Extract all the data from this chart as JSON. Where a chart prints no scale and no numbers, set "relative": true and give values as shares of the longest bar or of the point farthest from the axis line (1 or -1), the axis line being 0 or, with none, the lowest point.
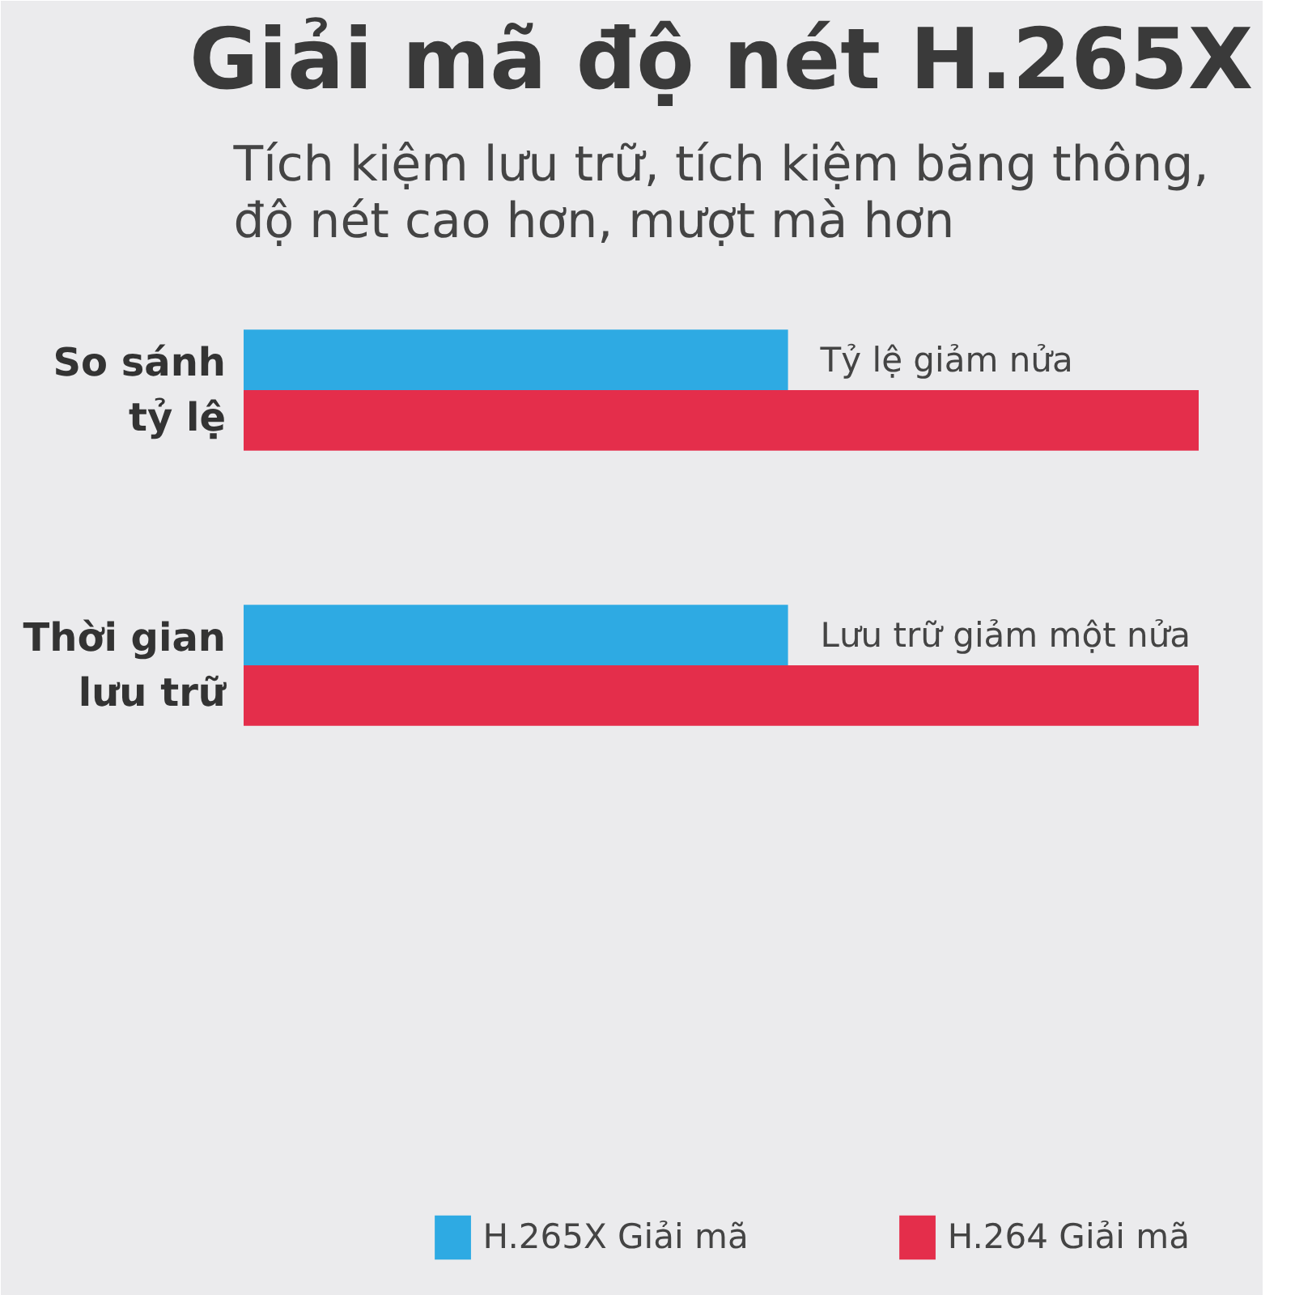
{
  "chart_data": {
    "type": "bar",
    "orientation": "horizontal",
    "relative": true,
    "title": "Giải mã độ nét H.265X",
    "subtitle": "Tích kiệm lưu trữ, tích kiệm băng thông,\nđộ nét cao hơn, mượt mà hơn",
    "categories": [
      "So sánh\ntỷ lệ",
      "Thời gian\nlưu trữ"
    ],
    "series": [
      {
        "name": "H.265X Giải mã",
        "color": "#2eaae3",
        "values": [
          0.57,
          0.57
        ]
      },
      {
        "name": "H.264 Giải mã",
        "color": "#e42e4b",
        "values": [
          1,
          1
        ]
      }
    ],
    "annotations": [
      {
        "text": "Tỷ lệ giảm nửa",
        "x": 0.57,
        "y": "So sánh\ntỷ lệ"
      },
      {
        "text": "Lưu trữ giảm một nửa",
        "x": 0.57,
        "y": "Thời gian\nlưu trữ"
      }
    ],
    "legend": "bottom",
    "grid": false
  }
}
